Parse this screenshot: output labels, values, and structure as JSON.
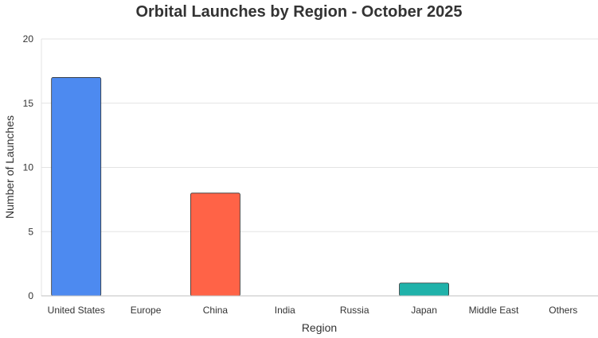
{
  "chart_data": {
    "type": "bar",
    "title": "Orbital Launches by Region - October 2025",
    "xlabel": "Region",
    "ylabel": "Number of Launches",
    "categories": [
      "United States",
      "Europe",
      "China",
      "India",
      "Russia",
      "Japan",
      "Middle East",
      "Others"
    ],
    "values": [
      17,
      0,
      8,
      0,
      0,
      1,
      0,
      0
    ],
    "bar_colors": [
      "#4d8af0",
      "#4d8af0",
      "#ff6347",
      "#ff6347",
      "#ff6347",
      "#20b2aa",
      "#20b2aa",
      "#20b2aa"
    ],
    "ylim": [
      0,
      20
    ],
    "yticks": [
      0,
      5,
      10,
      15,
      20
    ],
    "grid": true,
    "legend": "none"
  }
}
